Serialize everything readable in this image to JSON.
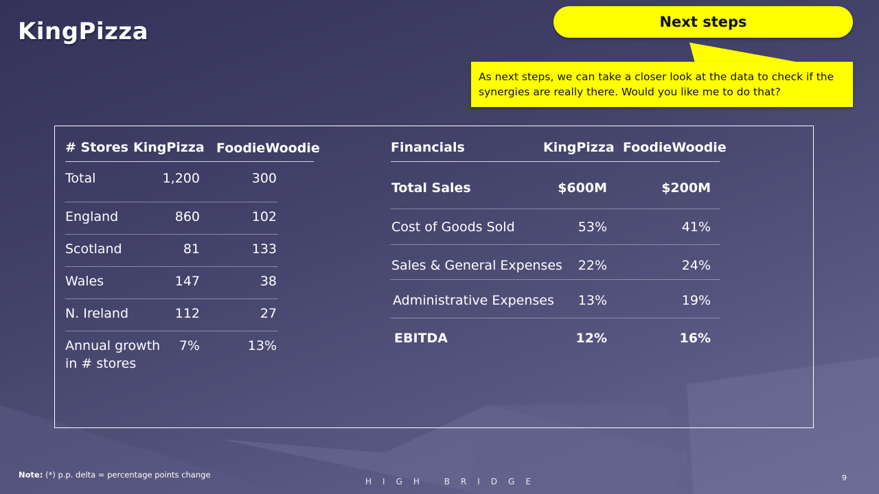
{
  "slide": {
    "title": "KingPizza",
    "next_steps_label": "Next steps",
    "callout_text": "As next steps, we can take a closer look at the data to check if the synergies are really there. Would you like me to do that?",
    "note_label": "Note:",
    "note_text": " (*) p.p. delta = percentage points change",
    "brand": "HIGH BRIDGE",
    "page_number": "9"
  },
  "stores": {
    "headers": [
      "# Stores",
      "KingPizza",
      "FoodieWoodie"
    ],
    "rows": [
      {
        "label": "Total",
        "kp": "1,200",
        "fw": "300"
      },
      {
        "label": "England",
        "kp": "860",
        "fw": "102"
      },
      {
        "label": "Scotland",
        "kp": "81",
        "fw": "133"
      },
      {
        "label": "Wales",
        "kp": "147",
        "fw": "38"
      },
      {
        "label": "N. Ireland",
        "kp": "112",
        "fw": "27"
      },
      {
        "label": "Annual growth",
        "label2": "in # stores",
        "kp": "7%",
        "fw": "13%"
      }
    ]
  },
  "financials": {
    "headers": [
      "Financials",
      "KingPizza",
      "FoodieWoodie"
    ],
    "rows": [
      {
        "label": "Total Sales",
        "kp": "$600M",
        "fw": "$200M"
      },
      {
        "label": "Cost of Goods Sold",
        "kp": "53%",
        "fw": "41%"
      },
      {
        "label": "Sales & General Expenses",
        "kp": "22%",
        "fw": "24%"
      },
      {
        "label": "Administrative Expenses",
        "kp": "13%",
        "fw": "19%"
      },
      {
        "label": "EBITDA",
        "kp": "12%",
        "fw": "16%"
      }
    ]
  },
  "colors": {
    "accent": "#ffff00",
    "background": "#43426a"
  }
}
